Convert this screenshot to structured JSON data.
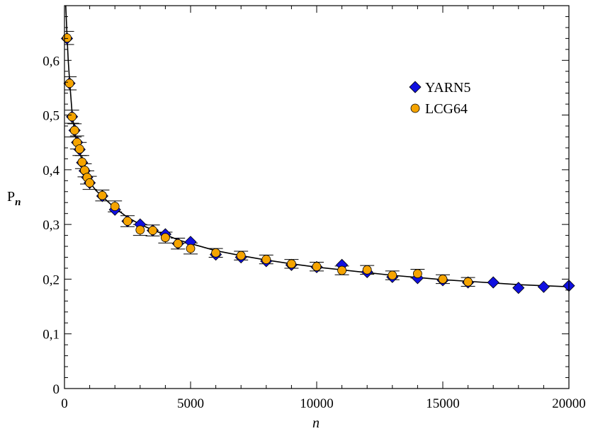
{
  "chart_data": {
    "type": "scatter",
    "xlabel": "n",
    "ylabel_main": "P",
    "ylabel_sub": "n",
    "xlim": [
      0,
      20000
    ],
    "ylim": [
      0,
      0.7
    ],
    "xticks": [
      0,
      5000,
      10000,
      15000,
      20000
    ],
    "xtick_labels": [
      "0",
      "5000",
      "10000",
      "15000",
      "20000"
    ],
    "yticks": [
      0,
      0.1,
      0.2,
      0.3,
      0.4,
      0.5,
      0.6
    ],
    "ytick_labels": [
      "0",
      "0,1",
      "0,2",
      "0,3",
      "0,4",
      "0,5",
      "0,6"
    ],
    "grid": false,
    "legend_position": "top-right",
    "series": [
      {
        "name": "YARN5",
        "marker": "diamond",
        "color": "#1010e0",
        "points": [
          [
            100,
            0.64
          ],
          [
            200,
            0.558
          ],
          [
            300,
            0.497
          ],
          [
            400,
            0.472
          ],
          [
            500,
            0.45
          ],
          [
            600,
            0.437
          ],
          [
            700,
            0.413
          ],
          [
            800,
            0.398
          ],
          [
            900,
            0.386
          ],
          [
            1000,
            0.376
          ],
          [
            1500,
            0.352
          ],
          [
            2000,
            0.327
          ],
          [
            2500,
            0.306
          ],
          [
            3000,
            0.3
          ],
          [
            3500,
            0.289
          ],
          [
            4000,
            0.282
          ],
          [
            4500,
            0.265
          ],
          [
            5000,
            0.268
          ],
          [
            6000,
            0.245
          ],
          [
            7000,
            0.24
          ],
          [
            8000,
            0.233
          ],
          [
            9000,
            0.226
          ],
          [
            10000,
            0.222
          ],
          [
            11000,
            0.226
          ],
          [
            12000,
            0.213
          ],
          [
            13000,
            0.204
          ],
          [
            14000,
            0.202
          ],
          [
            15000,
            0.198
          ],
          [
            16000,
            0.194
          ],
          [
            17000,
            0.194
          ],
          [
            18000,
            0.184
          ],
          [
            19000,
            0.186
          ],
          [
            20000,
            0.188
          ]
        ]
      },
      {
        "name": "LCG64",
        "marker": "circle",
        "color": "#f5a400",
        "points": [
          [
            100,
            0.641
          ],
          [
            200,
            0.558
          ],
          [
            300,
            0.497
          ],
          [
            400,
            0.472
          ],
          [
            500,
            0.45
          ],
          [
            600,
            0.438
          ],
          [
            700,
            0.414
          ],
          [
            800,
            0.399
          ],
          [
            900,
            0.386
          ],
          [
            1000,
            0.376
          ],
          [
            1500,
            0.353
          ],
          [
            2000,
            0.333
          ],
          [
            2500,
            0.306
          ],
          [
            3000,
            0.29
          ],
          [
            3500,
            0.289
          ],
          [
            4000,
            0.276
          ],
          [
            4500,
            0.265
          ],
          [
            5000,
            0.256
          ],
          [
            6000,
            0.248
          ],
          [
            7000,
            0.243
          ],
          [
            8000,
            0.236
          ],
          [
            9000,
            0.228
          ],
          [
            10000,
            0.223
          ],
          [
            11000,
            0.216
          ],
          [
            12000,
            0.217
          ],
          [
            13000,
            0.207
          ],
          [
            14000,
            0.21
          ],
          [
            15000,
            0.2
          ],
          [
            16000,
            0.195
          ]
        ]
      }
    ],
    "fit_curve": [
      [
        20,
        0.75
      ],
      [
        50,
        0.7
      ],
      [
        100,
        0.645
      ],
      [
        150,
        0.6
      ],
      [
        200,
        0.565
      ],
      [
        300,
        0.505
      ],
      [
        400,
        0.47
      ],
      [
        500,
        0.448
      ],
      [
        600,
        0.433
      ],
      [
        700,
        0.416
      ],
      [
        800,
        0.401
      ],
      [
        900,
        0.388
      ],
      [
        1000,
        0.377
      ],
      [
        1250,
        0.362
      ],
      [
        1500,
        0.351
      ],
      [
        2000,
        0.33
      ],
      [
        2500,
        0.313
      ],
      [
        3000,
        0.3
      ],
      [
        3500,
        0.29
      ],
      [
        4000,
        0.281
      ],
      [
        4500,
        0.272
      ],
      [
        5000,
        0.265
      ],
      [
        6000,
        0.252
      ],
      [
        7000,
        0.243
      ],
      [
        8000,
        0.235
      ],
      [
        9000,
        0.228
      ],
      [
        10000,
        0.222
      ],
      [
        11000,
        0.217
      ],
      [
        12000,
        0.212
      ],
      [
        13000,
        0.207
      ],
      [
        14000,
        0.203
      ],
      [
        15000,
        0.199
      ],
      [
        16000,
        0.196
      ],
      [
        17000,
        0.193
      ],
      [
        18000,
        0.19
      ],
      [
        19000,
        0.188
      ],
      [
        20000,
        0.186
      ]
    ]
  }
}
